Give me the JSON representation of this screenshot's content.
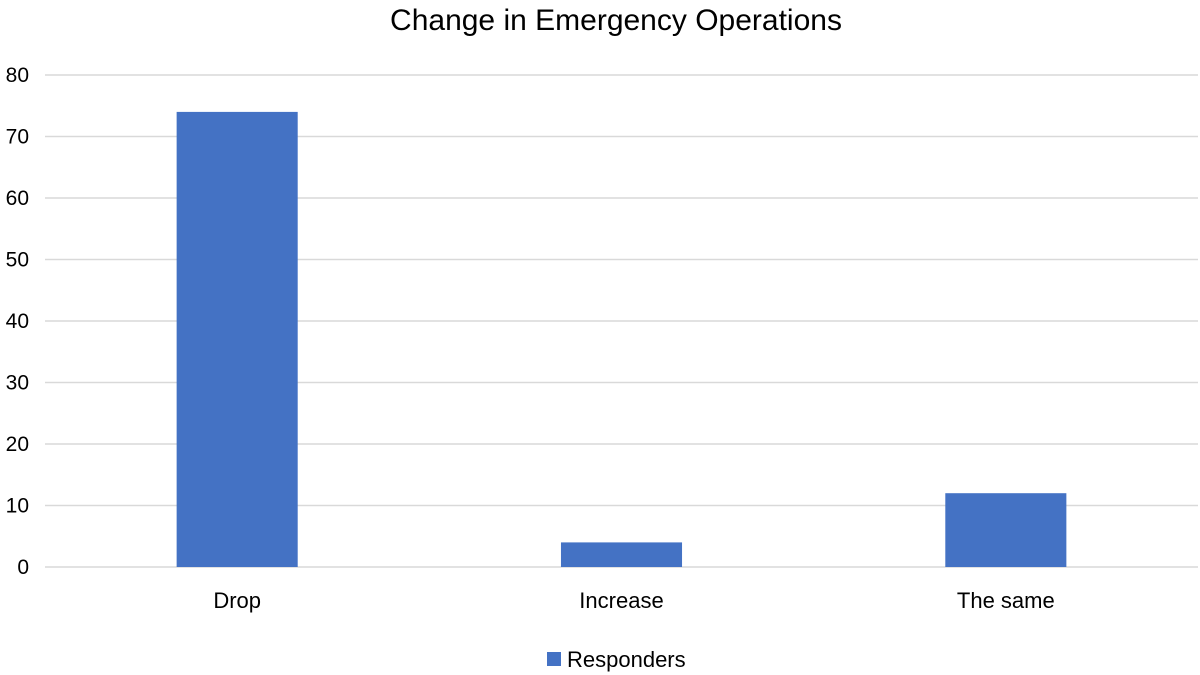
{
  "chart_data": {
    "type": "bar",
    "title": "Change in Emergency Operations",
    "categories": [
      "Drop",
      "Increase",
      "The same"
    ],
    "series": [
      {
        "name": "Responders",
        "values": [
          74,
          4,
          12
        ],
        "color": "#4472c4"
      }
    ],
    "xlabel": "",
    "ylabel": "",
    "ylim": [
      0,
      80
    ],
    "yticks": [
      0,
      10,
      20,
      30,
      40,
      50,
      60,
      70,
      80
    ],
    "grid": true,
    "legend_position": "bottom",
    "gridline_color": "#d9d9d9"
  }
}
